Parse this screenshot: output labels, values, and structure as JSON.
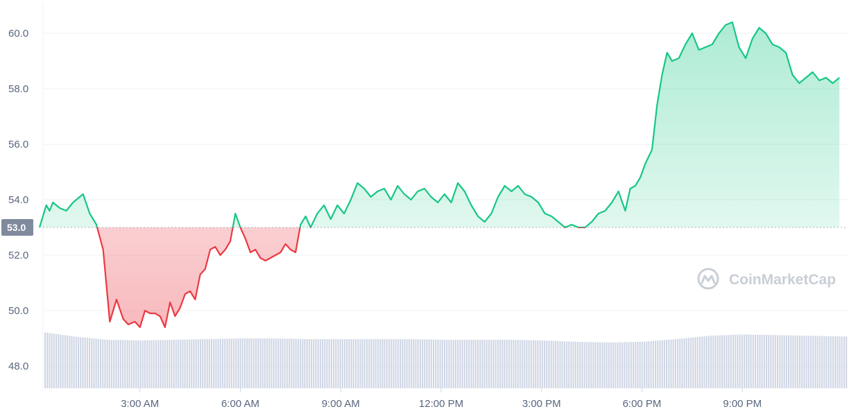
{
  "chart_data": {
    "type": "line",
    "title": "",
    "xlabel": "",
    "ylabel": "",
    "ylim": [
      47.2,
      61.1
    ],
    "y_ticks": [
      "48.0",
      "50.0",
      "52.0",
      "54.0",
      "56.0",
      "58.0",
      "60.0"
    ],
    "x_ticks": [
      "3:00 AM",
      "6:00 AM",
      "9:00 AM",
      "12:00 PM",
      "3:00 PM",
      "6:00 PM",
      "9:00 PM"
    ],
    "x_tick_hours": [
      3,
      6,
      9,
      12,
      15,
      18,
      21
    ],
    "reference_value": 53.0,
    "reference_label": "53.0",
    "colors": {
      "up": "#16c784",
      "down": "#ea3943",
      "reference_bg": "#808a9d",
      "grid": "#eff2f5",
      "volume": "#cfd6e4"
    },
    "watermark": "CoinMarketCap",
    "series": [
      {
        "x_hours": [
          0.0,
          0.2,
          0.3,
          0.4,
          0.6,
          0.8,
          1.0,
          1.3,
          1.5,
          1.7,
          1.9,
          2.1,
          2.3,
          2.5,
          2.65,
          2.85,
          3.0,
          3.15,
          3.3,
          3.45,
          3.6,
          3.75,
          3.9,
          4.05,
          4.2,
          4.35,
          4.5,
          4.65,
          4.8,
          4.95,
          5.1,
          5.25,
          5.4,
          5.55,
          5.7,
          5.85,
          6.0,
          6.15,
          6.3,
          6.45,
          6.6,
          6.75,
          6.9,
          7.05,
          7.2,
          7.35,
          7.5,
          7.65,
          7.8,
          7.95,
          8.1,
          8.3,
          8.5,
          8.7,
          8.9,
          9.1,
          9.3,
          9.5,
          9.7,
          9.9,
          10.1,
          10.3,
          10.5,
          10.7,
          10.9,
          11.1,
          11.3,
          11.5,
          11.7,
          11.9,
          12.1,
          12.3,
          12.5,
          12.7,
          12.9,
          13.1,
          13.3,
          13.5,
          13.7,
          13.9,
          14.1,
          14.3,
          14.5,
          14.7,
          14.9,
          15.1,
          15.3,
          15.5,
          15.7,
          15.9,
          16.1,
          16.3,
          16.5,
          16.7,
          16.9,
          17.1,
          17.3,
          17.5,
          17.65,
          17.8,
          17.95,
          18.1,
          18.3,
          18.45,
          18.6,
          18.75,
          18.9,
          19.1,
          19.3,
          19.5,
          19.7,
          19.9,
          20.1,
          20.3,
          20.5,
          20.7,
          20.9,
          21.1,
          21.3,
          21.5,
          21.7,
          21.9,
          22.1,
          22.3,
          22.5,
          22.7,
          22.9,
          23.1,
          23.3,
          23.5,
          23.7,
          23.9
        ],
        "values": [
          53.0,
          53.8,
          53.6,
          53.9,
          53.7,
          53.6,
          53.9,
          54.2,
          53.5,
          53.1,
          52.2,
          49.6,
          50.4,
          49.7,
          49.5,
          49.6,
          49.4,
          50.0,
          49.9,
          49.9,
          49.8,
          49.4,
          50.3,
          49.8,
          50.1,
          50.6,
          50.7,
          50.4,
          51.3,
          51.5,
          52.2,
          52.3,
          52.0,
          52.2,
          52.5,
          53.5,
          53.0,
          52.6,
          52.1,
          52.2,
          51.9,
          51.8,
          51.9,
          52.0,
          52.1,
          52.4,
          52.2,
          52.1,
          53.1,
          53.4,
          53.0,
          53.5,
          53.8,
          53.3,
          53.8,
          53.5,
          54.0,
          54.6,
          54.4,
          54.1,
          54.3,
          54.4,
          54.0,
          54.5,
          54.2,
          54.0,
          54.3,
          54.4,
          54.1,
          53.9,
          54.2,
          53.9,
          54.6,
          54.3,
          53.8,
          53.4,
          53.2,
          53.5,
          54.1,
          54.5,
          54.3,
          54.5,
          54.2,
          54.1,
          53.9,
          53.5,
          53.4,
          53.2,
          53.0,
          53.1,
          53.0,
          53.0,
          53.2,
          53.5,
          53.6,
          53.9,
          54.3,
          53.6,
          54.4,
          54.5,
          54.8,
          55.3,
          55.8,
          57.4,
          58.5,
          59.3,
          59.0,
          59.1,
          59.6,
          60.0,
          59.4,
          59.5,
          59.6,
          60.0,
          60.3,
          60.4,
          59.5,
          59.1,
          59.8,
          60.2,
          60.0,
          59.6,
          59.5,
          59.3,
          58.5,
          58.2,
          58.4,
          58.6,
          58.3,
          58.4,
          58.2,
          58.4
        ]
      }
    ],
    "volume": {
      "x_hours": [
        0,
        1,
        2,
        3,
        4,
        5,
        6,
        7,
        8,
        9,
        10,
        11,
        12,
        13,
        14,
        15,
        16,
        17,
        18,
        19,
        20,
        21,
        22,
        23,
        24
      ],
      "heights": [
        0.85,
        0.78,
        0.73,
        0.72,
        0.73,
        0.74,
        0.75,
        0.75,
        0.74,
        0.74,
        0.74,
        0.74,
        0.73,
        0.73,
        0.73,
        0.72,
        0.7,
        0.69,
        0.7,
        0.74,
        0.79,
        0.81,
        0.8,
        0.79,
        0.78
      ]
    }
  }
}
